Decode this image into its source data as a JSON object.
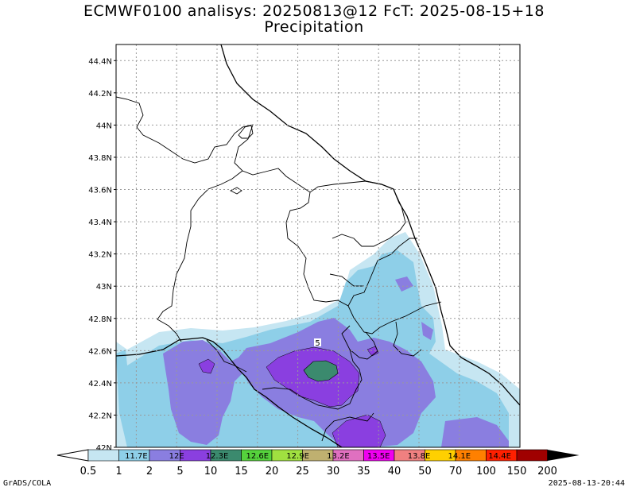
{
  "title": {
    "line1": "ECMWF0100 analisys: 20250813@12 FcT: 2025-08-15+18",
    "line2": "Precipitation"
  },
  "axes": {
    "lat_labels": [
      "42N",
      "42.2N",
      "42.4N",
      "42.6N",
      "42.8N",
      "43N",
      "43.2N",
      "43.4N",
      "43.6N",
      "43.8N",
      "44N",
      "44.2N",
      "44.4N"
    ],
    "lon_labels": [
      "11.7E",
      "12E",
      "12.3E",
      "12.6E",
      "12.9E",
      "13.2E",
      "13.5E",
      "13.8E",
      "14.1E",
      "14.4E"
    ],
    "lat_range": [
      42.0,
      44.5
    ],
    "lon_range": [
      11.55,
      14.55
    ],
    "grid": true
  },
  "colorbar": {
    "values": [
      "0.5",
      "1",
      "2",
      "5",
      "10",
      "15",
      "20",
      "25",
      "30",
      "35",
      "40",
      "50",
      "70",
      "100",
      "150",
      "200"
    ],
    "colors": [
      "#c6e6f2",
      "#8ecfe8",
      "#8a7ee0",
      "#8a3fe0",
      "#3b8a6e",
      "#55d23c",
      "#a0e040",
      "#bfb070",
      "#e070c0",
      "#f000f0",
      "#f08080",
      "#ffd000",
      "#ff8000",
      "#ff2000",
      "#a00000"
    ]
  },
  "point_marker": "5",
  "footer": {
    "left": "GrADS/COLA",
    "right": "2025-08-13-20:44"
  }
}
